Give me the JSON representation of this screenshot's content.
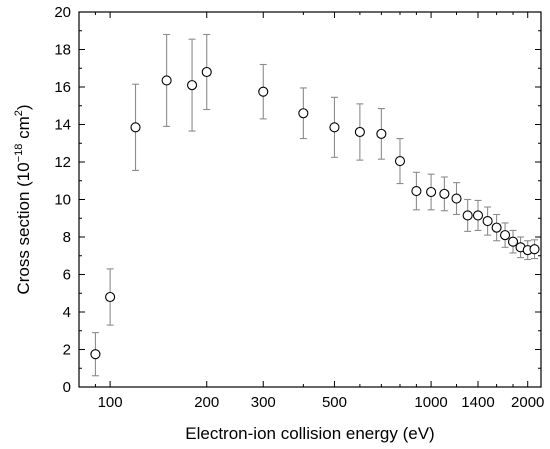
{
  "chart_data": {
    "type": "scatter",
    "xlabel": "Electron-ion collision energy (eV)",
    "ylabel_main": "Cross section (10",
    "ylabel_exp": "−18",
    "ylabel_mid": " cm",
    "ylabel_sup2": "2",
    "ylabel_end": ")",
    "x_scale": "log",
    "xlim": [
      80,
      2200
    ],
    "ylim": [
      0,
      20
    ],
    "x_ticks_labeled": [
      {
        "value": 100,
        "label": "100"
      },
      {
        "value": 200,
        "label": "200"
      },
      {
        "value": 300,
        "label": "300"
      },
      {
        "value": 500,
        "label": "500"
      },
      {
        "value": 1000,
        "label": "1000"
      },
      {
        "value": 1400,
        "label": "1400"
      },
      {
        "value": 2000,
        "label": "2000"
      }
    ],
    "x_ticks_minor": [
      90,
      400,
      600,
      700,
      800,
      900,
      1200,
      1600,
      1800
    ],
    "y_ticks": [
      {
        "value": 0,
        "label": "0"
      },
      {
        "value": 2,
        "label": "2"
      },
      {
        "value": 4,
        "label": "4"
      },
      {
        "value": 6,
        "label": "6"
      },
      {
        "value": 8,
        "label": "8"
      },
      {
        "value": 10,
        "label": "10"
      },
      {
        "value": 12,
        "label": "12"
      },
      {
        "value": 14,
        "label": "14"
      },
      {
        "value": 16,
        "label": "16"
      },
      {
        "value": 18,
        "label": "18"
      },
      {
        "value": 20,
        "label": "20"
      }
    ],
    "grid": false,
    "points": [
      {
        "x": 90,
        "y": 1.75,
        "err": 1.15
      },
      {
        "x": 100,
        "y": 4.8,
        "err": 1.5
      },
      {
        "x": 120,
        "y": 13.85,
        "err": 2.3
      },
      {
        "x": 150,
        "y": 16.35,
        "err": 2.45
      },
      {
        "x": 180,
        "y": 16.1,
        "err": 2.45
      },
      {
        "x": 200,
        "y": 16.8,
        "err": 2.0
      },
      {
        "x": 300,
        "y": 15.75,
        "err": 1.45
      },
      {
        "x": 400,
        "y": 14.6,
        "err": 1.35
      },
      {
        "x": 500,
        "y": 13.85,
        "err": 1.6
      },
      {
        "x": 600,
        "y": 13.6,
        "err": 1.5
      },
      {
        "x": 700,
        "y": 13.5,
        "err": 1.35
      },
      {
        "x": 800,
        "y": 12.05,
        "err": 1.2
      },
      {
        "x": 900,
        "y": 10.45,
        "err": 1.0
      },
      {
        "x": 1000,
        "y": 10.4,
        "err": 0.95
      },
      {
        "x": 1100,
        "y": 10.3,
        "err": 0.9
      },
      {
        "x": 1200,
        "y": 10.05,
        "err": 0.85
      },
      {
        "x": 1300,
        "y": 9.15,
        "err": 0.85
      },
      {
        "x": 1400,
        "y": 9.15,
        "err": 0.8
      },
      {
        "x": 1500,
        "y": 8.85,
        "err": 0.75
      },
      {
        "x": 1600,
        "y": 8.5,
        "err": 0.7
      },
      {
        "x": 1700,
        "y": 8.1,
        "err": 0.65
      },
      {
        "x": 1800,
        "y": 7.75,
        "err": 0.6
      },
      {
        "x": 1900,
        "y": 7.45,
        "err": 0.55
      },
      {
        "x": 2000,
        "y": 7.3,
        "err": 0.5
      },
      {
        "x": 2100,
        "y": 7.35,
        "err": 0.5
      }
    ]
  }
}
